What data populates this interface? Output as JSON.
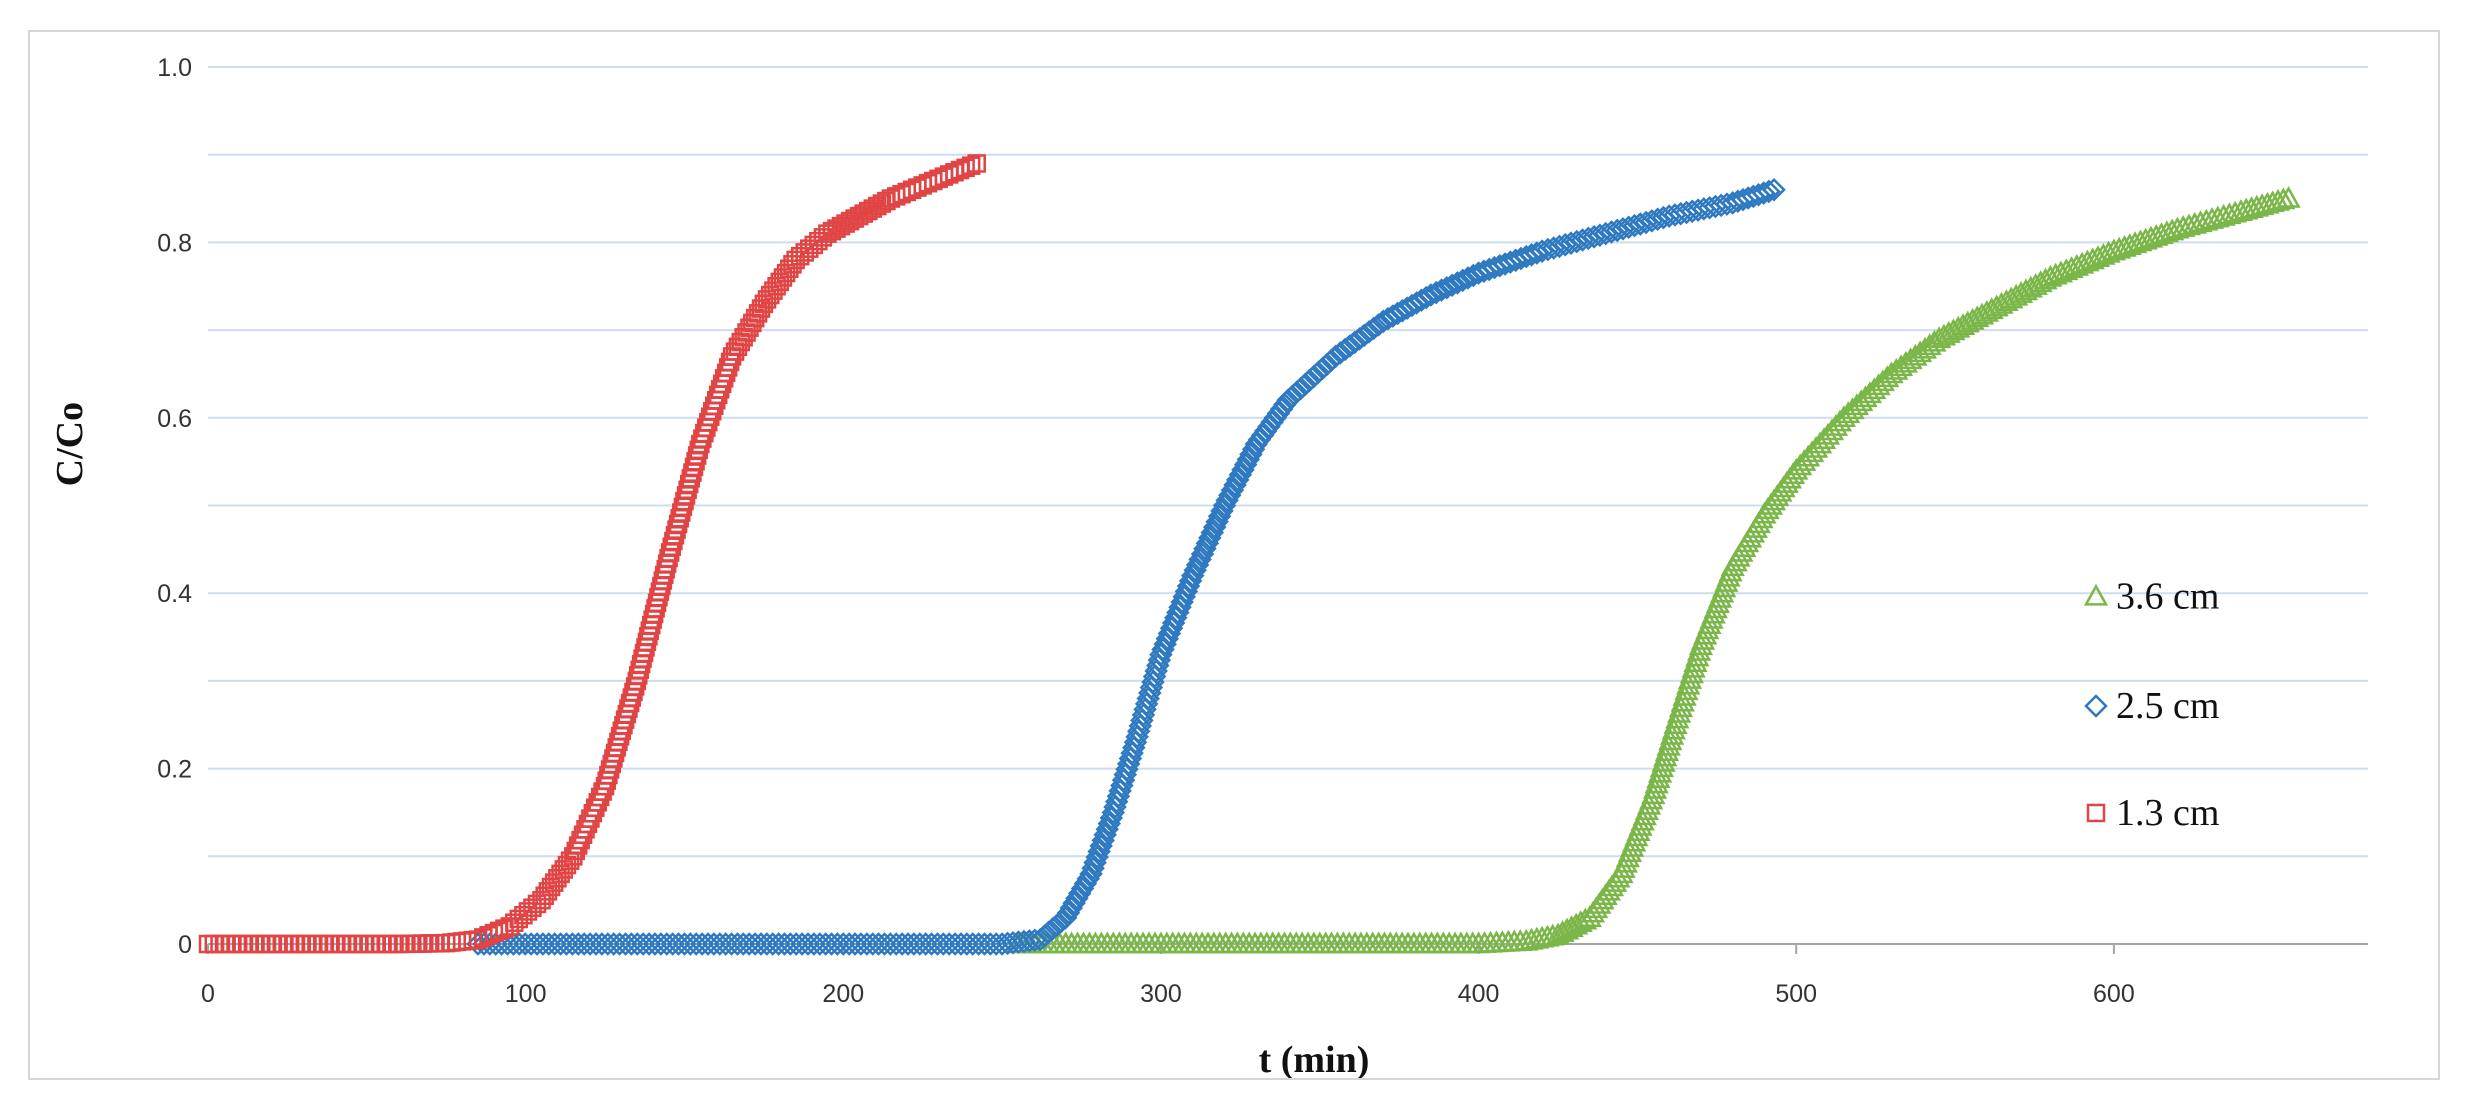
{
  "chart_data": {
    "type": "scatter",
    "title": "",
    "xlabel": "t (min)",
    "ylabel": "C/Co",
    "xlim": [
      0,
      680
    ],
    "ylim": [
      0,
      1.0
    ],
    "x_ticks": [
      0,
      100,
      200,
      300,
      400,
      500,
      600
    ],
    "y_ticks": [
      0,
      0.2,
      0.4,
      0.6,
      0.8,
      1.0
    ],
    "x_tick_labels": [
      "0",
      "100",
      "200",
      "300",
      "400",
      "500",
      "600"
    ],
    "y_tick_labels": [
      "0",
      "0.2",
      "0.4",
      "0.6",
      "0.8",
      "1.0"
    ],
    "grid": "horizontal",
    "legend_position": "right",
    "series": [
      {
        "name": "3.6 cm",
        "marker": "triangle",
        "color": "#7ab648",
        "points": [
          [
            255,
            0
          ],
          [
            300,
            0
          ],
          [
            350,
            0
          ],
          [
            400,
            0
          ],
          [
            415,
            0.003
          ],
          [
            425,
            0.01
          ],
          [
            435,
            0.03
          ],
          [
            445,
            0.08
          ],
          [
            455,
            0.17
          ],
          [
            462,
            0.25
          ],
          [
            470,
            0.34
          ],
          [
            480,
            0.43
          ],
          [
            490,
            0.49
          ],
          [
            500,
            0.54
          ],
          [
            515,
            0.6
          ],
          [
            530,
            0.65
          ],
          [
            545,
            0.69
          ],
          [
            560,
            0.72
          ],
          [
            580,
            0.76
          ],
          [
            600,
            0.79
          ],
          [
            620,
            0.815
          ],
          [
            640,
            0.835
          ],
          [
            655,
            0.85
          ]
        ]
      },
      {
        "name": "2.5 cm",
        "marker": "diamond",
        "color": "#2e79c0",
        "points": [
          [
            85,
            0
          ],
          [
            150,
            0
          ],
          [
            200,
            0
          ],
          [
            250,
            0
          ],
          [
            262,
            0.005
          ],
          [
            270,
            0.03
          ],
          [
            278,
            0.08
          ],
          [
            285,
            0.15
          ],
          [
            292,
            0.23
          ],
          [
            300,
            0.33
          ],
          [
            310,
            0.42
          ],
          [
            320,
            0.5
          ],
          [
            330,
            0.57
          ],
          [
            340,
            0.62
          ],
          [
            355,
            0.67
          ],
          [
            370,
            0.71
          ],
          [
            385,
            0.74
          ],
          [
            400,
            0.765
          ],
          [
            420,
            0.79
          ],
          [
            440,
            0.81
          ],
          [
            460,
            0.83
          ],
          [
            480,
            0.845
          ],
          [
            493,
            0.86
          ]
        ]
      },
      {
        "name": "1.3 cm",
        "marker": "square",
        "color": "#e04444",
        "points": [
          [
            0,
            0
          ],
          [
            20,
            0
          ],
          [
            40,
            0
          ],
          [
            60,
            0
          ],
          [
            75,
            0.001
          ],
          [
            85,
            0.005
          ],
          [
            95,
            0.02
          ],
          [
            105,
            0.05
          ],
          [
            115,
            0.1
          ],
          [
            125,
            0.18
          ],
          [
            135,
            0.3
          ],
          [
            145,
            0.44
          ],
          [
            155,
            0.57
          ],
          [
            165,
            0.67
          ],
          [
            175,
            0.73
          ],
          [
            185,
            0.78
          ],
          [
            195,
            0.81
          ],
          [
            205,
            0.83
          ],
          [
            215,
            0.85
          ],
          [
            225,
            0.865
          ],
          [
            235,
            0.88
          ],
          [
            242,
            0.89
          ]
        ]
      }
    ]
  }
}
